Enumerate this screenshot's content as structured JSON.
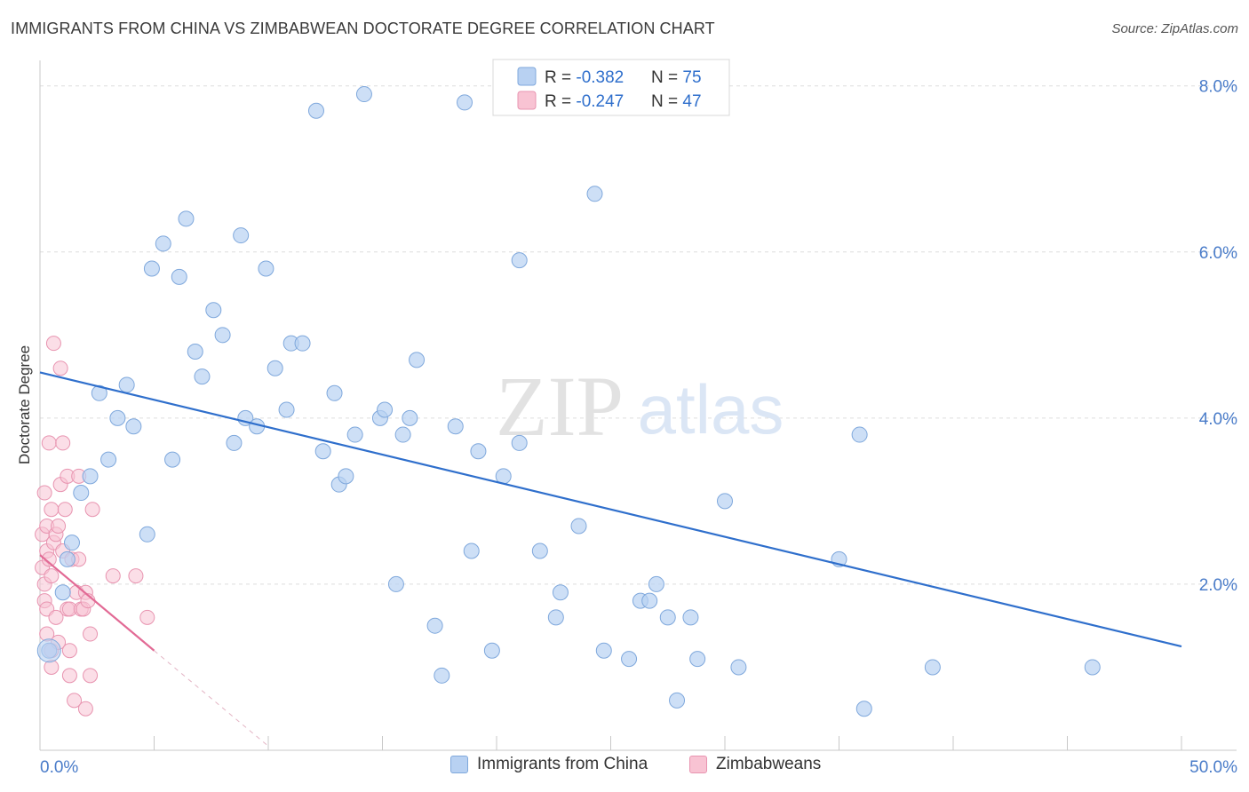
{
  "title": "IMMIGRANTS FROM CHINA VS ZIMBABWEAN DOCTORATE DEGREE CORRELATION CHART",
  "source": "Source: ZipAtlas.com",
  "watermark": {
    "zip": "ZIP",
    "atlas": "atlas"
  },
  "colors": {
    "blue_fill": "#b8d1f2",
    "blue_stroke": "#7fa8dc",
    "blue_line": "#2f6fcc",
    "pink_fill": "#f8c3d3",
    "pink_stroke": "#e894b0",
    "pink_line": "#e26a95",
    "axis_text": "#4a7cc9",
    "grid": "#dddddd"
  },
  "legend_top": {
    "rows": [
      {
        "r_label": "R = ",
        "r_value": "-0.382",
        "n_label": "N = ",
        "n_value": "75",
        "series": "blue"
      },
      {
        "r_label": "R = ",
        "r_value": "-0.247",
        "n_label": "N = ",
        "n_value": "47",
        "series": "pink"
      }
    ]
  },
  "chart_data": {
    "type": "scatter",
    "title": "IMMIGRANTS FROM CHINA VS ZIMBABWEAN DOCTORATE DEGREE CORRELATION CHART",
    "xlabel": "",
    "ylabel": "Doctorate Degree",
    "xlim": [
      0,
      50
    ],
    "ylim": [
      0,
      8.2
    ],
    "x_tick_labels": [
      "0.0%",
      "50.0%"
    ],
    "y_ticks": [
      2,
      4,
      6,
      8
    ],
    "y_tick_labels": [
      "2.0%",
      "4.0%",
      "6.0%",
      "8.0%"
    ],
    "grid": "horizontal dashed",
    "legend": "top-center and bottom",
    "series": [
      {
        "name": "Immigrants from China",
        "color": "#b8d1f2",
        "points": [
          [
            0.4,
            1.2
          ],
          [
            1.0,
            1.9
          ],
          [
            1.2,
            2.3
          ],
          [
            1.4,
            2.5
          ],
          [
            1.8,
            3.1
          ],
          [
            2.2,
            3.3
          ],
          [
            2.6,
            4.3
          ],
          [
            3.0,
            3.5
          ],
          [
            3.4,
            4.0
          ],
          [
            3.8,
            4.4
          ],
          [
            4.1,
            3.9
          ],
          [
            4.7,
            2.6
          ],
          [
            4.9,
            5.8
          ],
          [
            5.4,
            6.1
          ],
          [
            5.8,
            3.5
          ],
          [
            6.1,
            5.7
          ],
          [
            6.4,
            6.4
          ],
          [
            6.8,
            4.8
          ],
          [
            7.1,
            4.5
          ],
          [
            7.6,
            5.3
          ],
          [
            8.0,
            5.0
          ],
          [
            8.5,
            3.7
          ],
          [
            8.8,
            6.2
          ],
          [
            9.0,
            4.0
          ],
          [
            9.5,
            3.9
          ],
          [
            9.9,
            5.8
          ],
          [
            10.3,
            4.6
          ],
          [
            10.8,
            4.1
          ],
          [
            11.0,
            4.9
          ],
          [
            11.5,
            4.9
          ],
          [
            12.1,
            7.7
          ],
          [
            12.4,
            3.6
          ],
          [
            12.9,
            4.3
          ],
          [
            13.1,
            3.2
          ],
          [
            13.4,
            3.3
          ],
          [
            13.8,
            3.8
          ],
          [
            14.2,
            7.9
          ],
          [
            14.9,
            4.0
          ],
          [
            15.1,
            4.1
          ],
          [
            15.6,
            2.0
          ],
          [
            15.9,
            3.8
          ],
          [
            16.2,
            4.0
          ],
          [
            16.5,
            4.7
          ],
          [
            17.3,
            1.5
          ],
          [
            17.6,
            0.9
          ],
          [
            18.2,
            3.9
          ],
          [
            18.6,
            7.8
          ],
          [
            18.9,
            2.4
          ],
          [
            19.2,
            3.6
          ],
          [
            19.8,
            1.2
          ],
          [
            20.3,
            3.3
          ],
          [
            21.0,
            3.7
          ],
          [
            21.0,
            5.9
          ],
          [
            21.9,
            2.4
          ],
          [
            22.6,
            1.6
          ],
          [
            22.8,
            1.9
          ],
          [
            23.6,
            2.7
          ],
          [
            24.3,
            6.7
          ],
          [
            24.7,
            1.2
          ],
          [
            25.8,
            1.1
          ],
          [
            26.3,
            1.8
          ],
          [
            26.7,
            1.8
          ],
          [
            27.0,
            2.0
          ],
          [
            27.9,
            0.6
          ],
          [
            27.5,
            1.6
          ],
          [
            28.5,
            1.6
          ],
          [
            28.8,
            1.1
          ],
          [
            29.2,
            8.0
          ],
          [
            30.0,
            3.0
          ],
          [
            30.6,
            1.0
          ],
          [
            35.0,
            2.3
          ],
          [
            35.9,
            3.8
          ],
          [
            36.1,
            0.5
          ],
          [
            39.1,
            1.0
          ],
          [
            46.1,
            1.0
          ]
        ],
        "trend": {
          "x0": 0,
          "y0": 4.55,
          "x1": 50,
          "y1": 1.25
        }
      },
      {
        "name": "Zimbabweans",
        "color": "#f8c3d3",
        "points": [
          [
            0.1,
            2.2
          ],
          [
            0.1,
            2.6
          ],
          [
            0.2,
            3.1
          ],
          [
            0.2,
            1.8
          ],
          [
            0.2,
            2.0
          ],
          [
            0.3,
            1.4
          ],
          [
            0.3,
            1.7
          ],
          [
            0.3,
            2.4
          ],
          [
            0.3,
            2.7
          ],
          [
            0.4,
            3.7
          ],
          [
            0.4,
            2.3
          ],
          [
            0.5,
            1.2
          ],
          [
            0.5,
            2.1
          ],
          [
            0.5,
            2.9
          ],
          [
            0.5,
            1.0
          ],
          [
            0.6,
            2.5
          ],
          [
            0.6,
            4.9
          ],
          [
            0.7,
            1.6
          ],
          [
            0.7,
            2.6
          ],
          [
            0.8,
            2.7
          ],
          [
            0.8,
            1.3
          ],
          [
            0.9,
            4.6
          ],
          [
            0.9,
            3.2
          ],
          [
            1.0,
            2.4
          ],
          [
            1.0,
            3.7
          ],
          [
            1.1,
            2.9
          ],
          [
            1.2,
            3.3
          ],
          [
            1.2,
            1.7
          ],
          [
            1.3,
            1.2
          ],
          [
            1.3,
            0.9
          ],
          [
            1.3,
            1.7
          ],
          [
            1.4,
            2.3
          ],
          [
            1.5,
            0.6
          ],
          [
            1.6,
            1.9
          ],
          [
            1.7,
            3.3
          ],
          [
            1.7,
            2.3
          ],
          [
            1.8,
            1.7
          ],
          [
            1.9,
            1.7
          ],
          [
            2.0,
            1.9
          ],
          [
            2.0,
            0.5
          ],
          [
            2.1,
            1.8
          ],
          [
            2.2,
            0.9
          ],
          [
            2.2,
            1.4
          ],
          [
            2.3,
            2.9
          ],
          [
            3.2,
            2.1
          ],
          [
            4.2,
            2.1
          ],
          [
            4.7,
            1.6
          ]
        ],
        "trend": {
          "x0": 0,
          "y0": 2.35,
          "x1": 5,
          "y1": 1.2
        },
        "trend_dashed_extension": {
          "x0": 5,
          "y0": 1.2,
          "x1": 10,
          "y1": 0.05
        }
      }
    ]
  },
  "legend_bottom": [
    {
      "label": "Immigrants from China",
      "series": "blue"
    },
    {
      "label": "Zimbabweans",
      "series": "pink"
    }
  ]
}
